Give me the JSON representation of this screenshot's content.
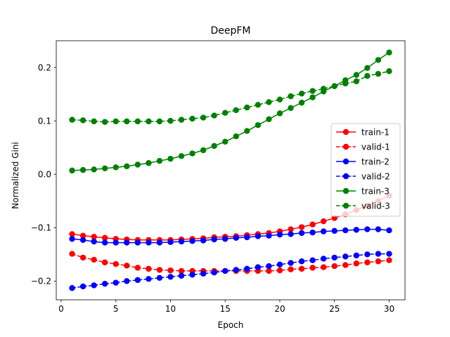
{
  "chart_data": {
    "type": "line",
    "title": "DeepFM",
    "xlabel": "Epoch",
    "ylabel": "Normalized Gini",
    "xlim": [
      -0.45,
      31.45
    ],
    "ylim": [
      -0.235,
      0.25
    ],
    "xticks": [
      0,
      5,
      10,
      15,
      20,
      25,
      30
    ],
    "yticks": [
      -0.2,
      -0.1,
      0.0,
      0.1,
      0.2
    ],
    "xtick_labels": [
      "0",
      "5",
      "10",
      "15",
      "20",
      "25",
      "30"
    ],
    "ytick_labels": [
      "−0.2",
      "−0.1",
      "0.0",
      "0.1",
      "0.2"
    ],
    "grid": false,
    "legend_position": "center-right",
    "x": [
      1,
      2,
      3,
      4,
      5,
      6,
      7,
      8,
      9,
      10,
      11,
      12,
      13,
      14,
      15,
      16,
      17,
      18,
      19,
      20,
      21,
      22,
      23,
      24,
      25,
      26,
      27,
      28,
      29,
      30
    ],
    "series": [
      {
        "name": "train-1",
        "color": "#ff0000",
        "linestyle": "solid",
        "values": [
          -0.112,
          -0.115,
          -0.117,
          -0.119,
          -0.121,
          -0.122,
          -0.123,
          -0.123,
          -0.123,
          -0.123,
          -0.122,
          -0.121,
          -0.12,
          -0.118,
          -0.117,
          -0.116,
          -0.114,
          -0.112,
          -0.11,
          -0.107,
          -0.103,
          -0.099,
          -0.094,
          -0.088,
          -0.082,
          -0.075,
          -0.067,
          -0.059,
          -0.05,
          -0.04
        ]
      },
      {
        "name": "valid-1",
        "color": "#ff0000",
        "linestyle": "dashed",
        "values": [
          -0.149,
          -0.156,
          -0.16,
          -0.165,
          -0.168,
          -0.171,
          -0.175,
          -0.177,
          -0.179,
          -0.18,
          -0.181,
          -0.181,
          -0.181,
          -0.181,
          -0.181,
          -0.181,
          -0.181,
          -0.181,
          -0.181,
          -0.18,
          -0.178,
          -0.177,
          -0.175,
          -0.174,
          -0.172,
          -0.17,
          -0.167,
          -0.165,
          -0.163,
          -0.161
        ]
      },
      {
        "name": "train-2",
        "color": "#0000ff",
        "linestyle": "solid",
        "values": [
          -0.121,
          -0.123,
          -0.126,
          -0.128,
          -0.128,
          -0.128,
          -0.128,
          -0.128,
          -0.128,
          -0.127,
          -0.126,
          -0.125,
          -0.124,
          -0.122,
          -0.121,
          -0.119,
          -0.118,
          -0.116,
          -0.115,
          -0.113,
          -0.112,
          -0.11,
          -0.109,
          -0.107,
          -0.106,
          -0.105,
          -0.104,
          -0.103,
          -0.103,
          -0.105
        ]
      },
      {
        "name": "valid-2",
        "color": "#0000ff",
        "linestyle": "dashed",
        "values": [
          -0.213,
          -0.21,
          -0.208,
          -0.205,
          -0.203,
          -0.2,
          -0.198,
          -0.196,
          -0.194,
          -0.192,
          -0.19,
          -0.188,
          -0.186,
          -0.184,
          -0.181,
          -0.179,
          -0.177,
          -0.174,
          -0.172,
          -0.169,
          -0.166,
          -0.163,
          -0.161,
          -0.158,
          -0.156,
          -0.154,
          -0.152,
          -0.15,
          -0.149,
          -0.149
        ]
      },
      {
        "name": "train-3",
        "color": "#008000",
        "linestyle": "solid",
        "values": [
          0.007,
          0.008,
          0.009,
          0.011,
          0.013,
          0.015,
          0.018,
          0.021,
          0.025,
          0.029,
          0.034,
          0.039,
          0.045,
          0.053,
          0.061,
          0.071,
          0.081,
          0.092,
          0.103,
          0.114,
          0.124,
          0.134,
          0.144,
          0.155,
          0.165,
          0.176,
          0.186,
          0.199,
          0.214,
          0.228
        ]
      },
      {
        "name": "valid-3",
        "color": "#008000",
        "linestyle": "dashed",
        "values": [
          0.102,
          0.101,
          0.099,
          0.098,
          0.099,
          0.099,
          0.099,
          0.099,
          0.099,
          0.1,
          0.102,
          0.104,
          0.106,
          0.11,
          0.115,
          0.12,
          0.125,
          0.13,
          0.135,
          0.14,
          0.146,
          0.151,
          0.156,
          0.16,
          0.165,
          0.17,
          0.174,
          0.184,
          0.188,
          0.193
        ]
      }
    ]
  }
}
